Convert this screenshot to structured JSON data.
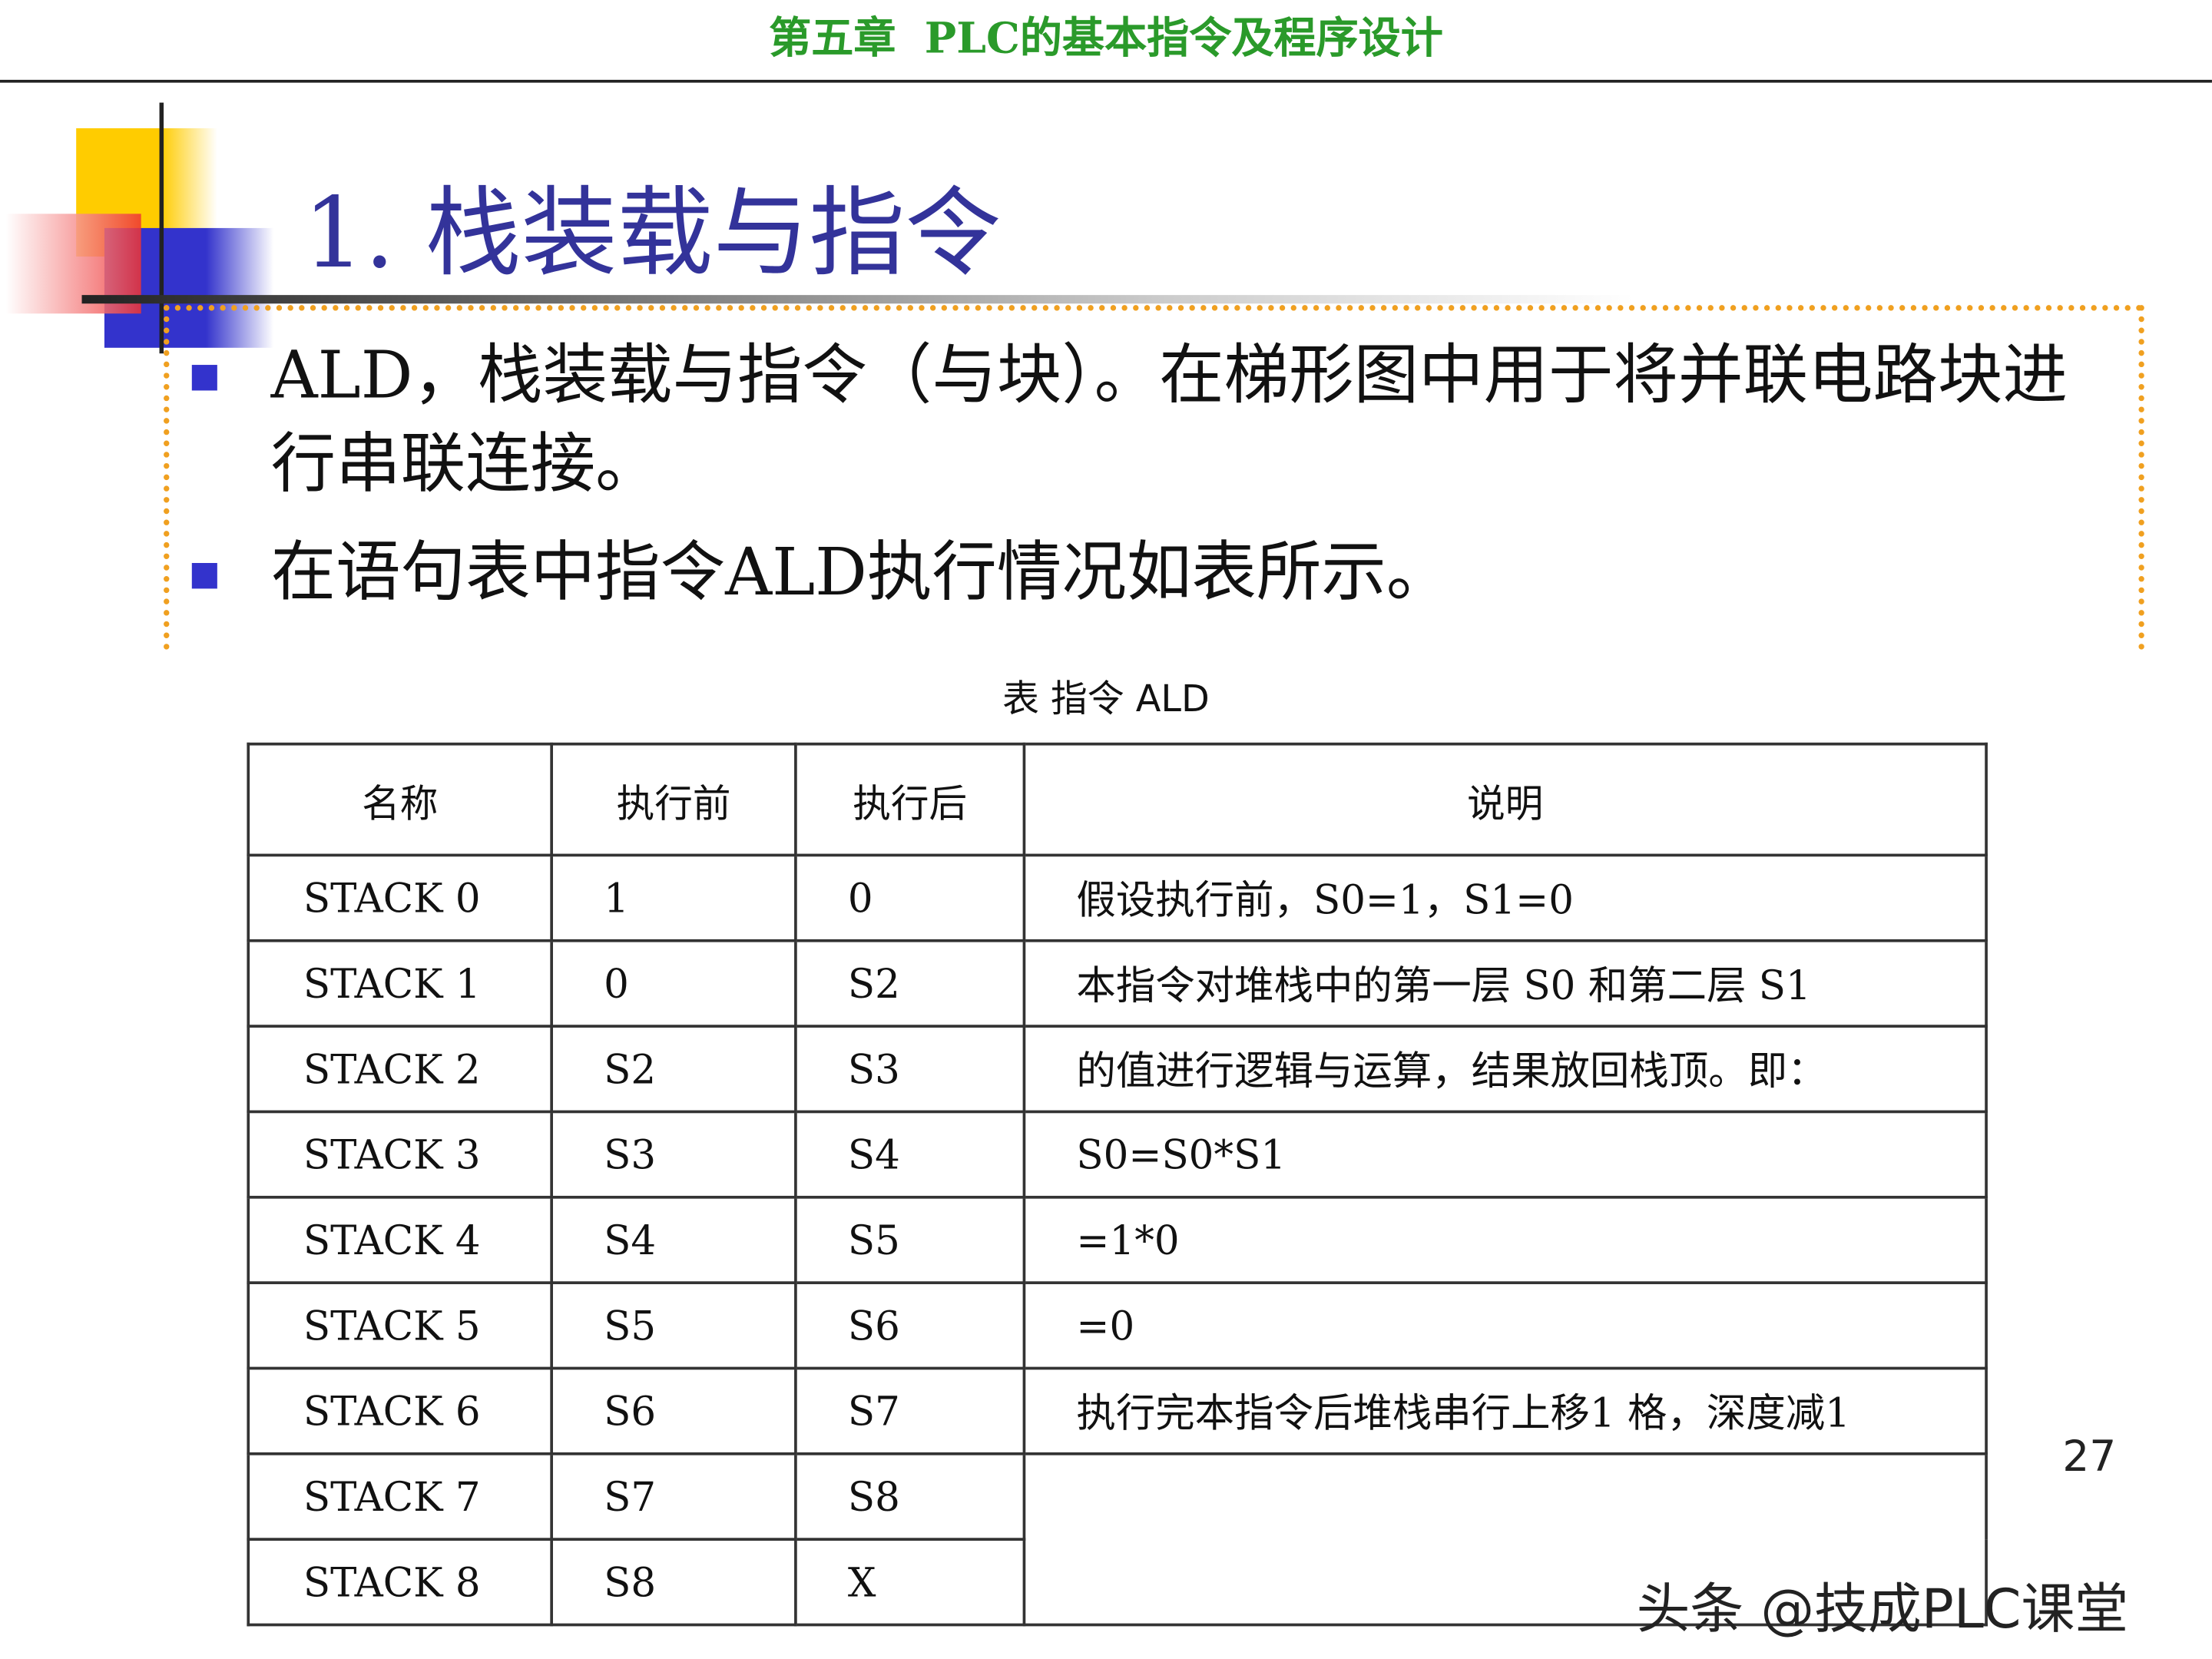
{
  "header": {
    "chapter": "第五章",
    "title": "PLC的基本指令及程序设计"
  },
  "slide": {
    "title": "1.  栈装载与指令",
    "bullets": [
      "ALD，栈装载与指令（与块）。在梯形图中用于将并联电路块进行串联连接。",
      "在语句表中指令ALD执行情况如表所示。"
    ],
    "caption": "表  指令 ALD"
  },
  "table": {
    "headers": [
      "名称",
      "执行前",
      "执行后",
      "说明"
    ],
    "rows": [
      [
        "STACK 0",
        "1",
        "0",
        "假设执行前，S0=1，S1=0"
      ],
      [
        "STACK 1",
        "0",
        "S2",
        "本指令对堆栈中的第一层 S0 和第二层 S1"
      ],
      [
        "STACK 2",
        "S2",
        "S3",
        "的值进行逻辑与运算，结果放回栈顶。即："
      ],
      [
        "STACK 3",
        "S3",
        "S4",
        "S0=S0*S1"
      ],
      [
        "STACK 4",
        "S4",
        "S5",
        "=1*0"
      ],
      [
        "STACK 5",
        "S5",
        "S6",
        "=0"
      ],
      [
        "STACK 6",
        "S6",
        "S7",
        "执行完本指令后堆栈串行上移1 格，深度减1"
      ],
      [
        "STACK 7",
        "S7",
        "S8",
        ""
      ],
      [
        "STACK 8",
        "S8",
        "X",
        ""
      ]
    ]
  },
  "page_number": "27",
  "watermark": "头条 @技成PLC课堂",
  "colors": {
    "header": "#2a9a2a",
    "title": "#33339a",
    "bullet": "#3333cc",
    "dotted_border": "#f0a020"
  }
}
